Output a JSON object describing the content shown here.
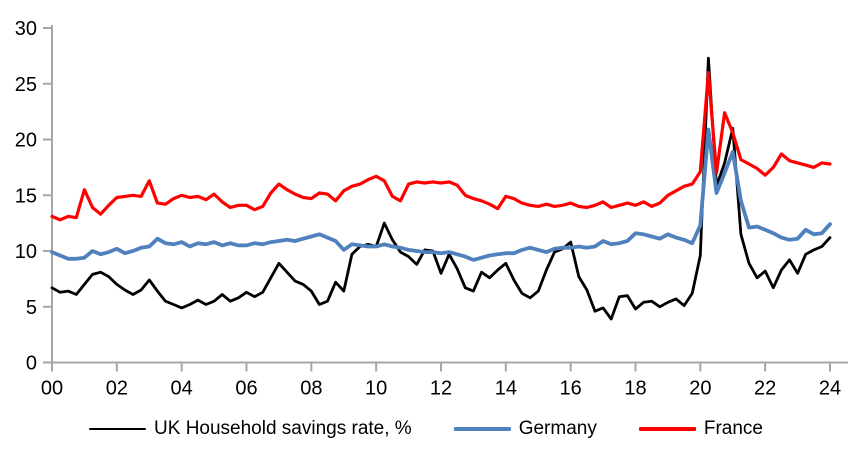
{
  "chart_data": {
    "type": "line",
    "title": "",
    "x_unit": "quarterly",
    "x_range": [
      "2000 Q1",
      "2024 Q1"
    ],
    "x_tick_labels": [
      "00",
      "02",
      "04",
      "06",
      "08",
      "10",
      "12",
      "14",
      "16",
      "18",
      "20",
      "22",
      "24"
    ],
    "y_ticks": [
      0,
      5,
      10,
      15,
      20,
      25,
      30
    ],
    "ylim": [
      0,
      30
    ],
    "grid": false,
    "legend_position": "bottom",
    "axis_color": "#a6a6a6",
    "text_color": "#000000",
    "series": [
      {
        "id": "uk",
        "name": "UK Household savings rate, %",
        "color": "#000000",
        "width": 2.8,
        "values": [
          6.7,
          6.3,
          6.4,
          6.1,
          7.0,
          7.9,
          8.1,
          7.7,
          7.0,
          6.5,
          6.1,
          6.5,
          7.4,
          6.4,
          5.5,
          5.2,
          4.9,
          5.2,
          5.6,
          5.2,
          5.5,
          6.1,
          5.5,
          5.8,
          6.3,
          5.9,
          6.3,
          7.6,
          8.9,
          8.1,
          7.3,
          7.0,
          6.4,
          5.2,
          5.5,
          7.2,
          6.4,
          9.7,
          10.4,
          10.6,
          10.4,
          12.5,
          11.0,
          9.9,
          9.5,
          8.8,
          10.1,
          10.0,
          8.0,
          9.7,
          8.4,
          6.7,
          6.4,
          8.1,
          7.6,
          8.3,
          8.9,
          7.4,
          6.2,
          5.8,
          6.4,
          8.3,
          9.9,
          10.2,
          10.8,
          7.7,
          6.5,
          4.6,
          4.9,
          3.9,
          5.9,
          6.0,
          4.8,
          5.4,
          5.5,
          5.0,
          5.4,
          5.7,
          5.1,
          6.2,
          9.6,
          27.3,
          15.8,
          17.9,
          21.0,
          11.5,
          8.9,
          7.6,
          8.2,
          6.7,
          8.3,
          9.2,
          8.0,
          9.7,
          10.1,
          10.4,
          11.2
        ]
      },
      {
        "id": "germany",
        "name": "Germany",
        "color": "#4f81bd",
        "width": 3.8,
        "values": [
          9.9,
          9.6,
          9.3,
          9.3,
          9.4,
          10.0,
          9.7,
          9.9,
          10.2,
          9.8,
          10.0,
          10.3,
          10.4,
          11.1,
          10.7,
          10.6,
          10.8,
          10.4,
          10.7,
          10.6,
          10.8,
          10.5,
          10.7,
          10.5,
          10.5,
          10.7,
          10.6,
          10.8,
          10.9,
          11.0,
          10.9,
          11.1,
          11.3,
          11.5,
          11.2,
          10.9,
          10.1,
          10.6,
          10.5,
          10.4,
          10.4,
          10.6,
          10.4,
          10.3,
          10.1,
          10.0,
          9.9,
          9.9,
          9.8,
          9.9,
          9.7,
          9.5,
          9.2,
          9.4,
          9.6,
          9.7,
          9.8,
          9.8,
          10.1,
          10.3,
          10.1,
          9.9,
          10.2,
          10.3,
          10.3,
          10.4,
          10.3,
          10.4,
          10.9,
          10.6,
          10.7,
          10.9,
          11.6,
          11.5,
          11.3,
          11.1,
          11.5,
          11.2,
          11.0,
          10.7,
          12.3,
          20.9,
          15.2,
          17.0,
          18.9,
          14.5,
          12.1,
          12.2,
          11.9,
          11.6,
          11.2,
          11.0,
          11.1,
          11.9,
          11.5,
          11.6,
          12.4
        ]
      },
      {
        "id": "france",
        "name": "France",
        "color": "#ff0000",
        "width": 3.2,
        "values": [
          13.1,
          12.8,
          13.1,
          13.0,
          15.5,
          13.9,
          13.3,
          14.1,
          14.8,
          14.9,
          15.0,
          14.9,
          16.3,
          14.3,
          14.2,
          14.7,
          15.0,
          14.8,
          14.9,
          14.6,
          15.1,
          14.4,
          13.9,
          14.1,
          14.1,
          13.7,
          14.0,
          15.2,
          16.0,
          15.5,
          15.1,
          14.8,
          14.7,
          15.2,
          15.1,
          14.5,
          15.4,
          15.8,
          16.0,
          16.4,
          16.7,
          16.3,
          14.9,
          14.5,
          16.0,
          16.2,
          16.1,
          16.2,
          16.1,
          16.2,
          15.9,
          15.0,
          14.7,
          14.5,
          14.2,
          13.8,
          14.9,
          14.7,
          14.3,
          14.1,
          14.0,
          14.2,
          14.0,
          14.1,
          14.3,
          14.0,
          13.9,
          14.1,
          14.4,
          13.9,
          14.1,
          14.3,
          14.1,
          14.4,
          14.0,
          14.3,
          15.0,
          15.4,
          15.8,
          16.0,
          17.1,
          26.0,
          17.0,
          22.4,
          20.6,
          18.2,
          17.8,
          17.4,
          16.8,
          17.5,
          18.7,
          18.1,
          17.9,
          17.7,
          17.5,
          17.9,
          17.8
        ]
      }
    ]
  }
}
